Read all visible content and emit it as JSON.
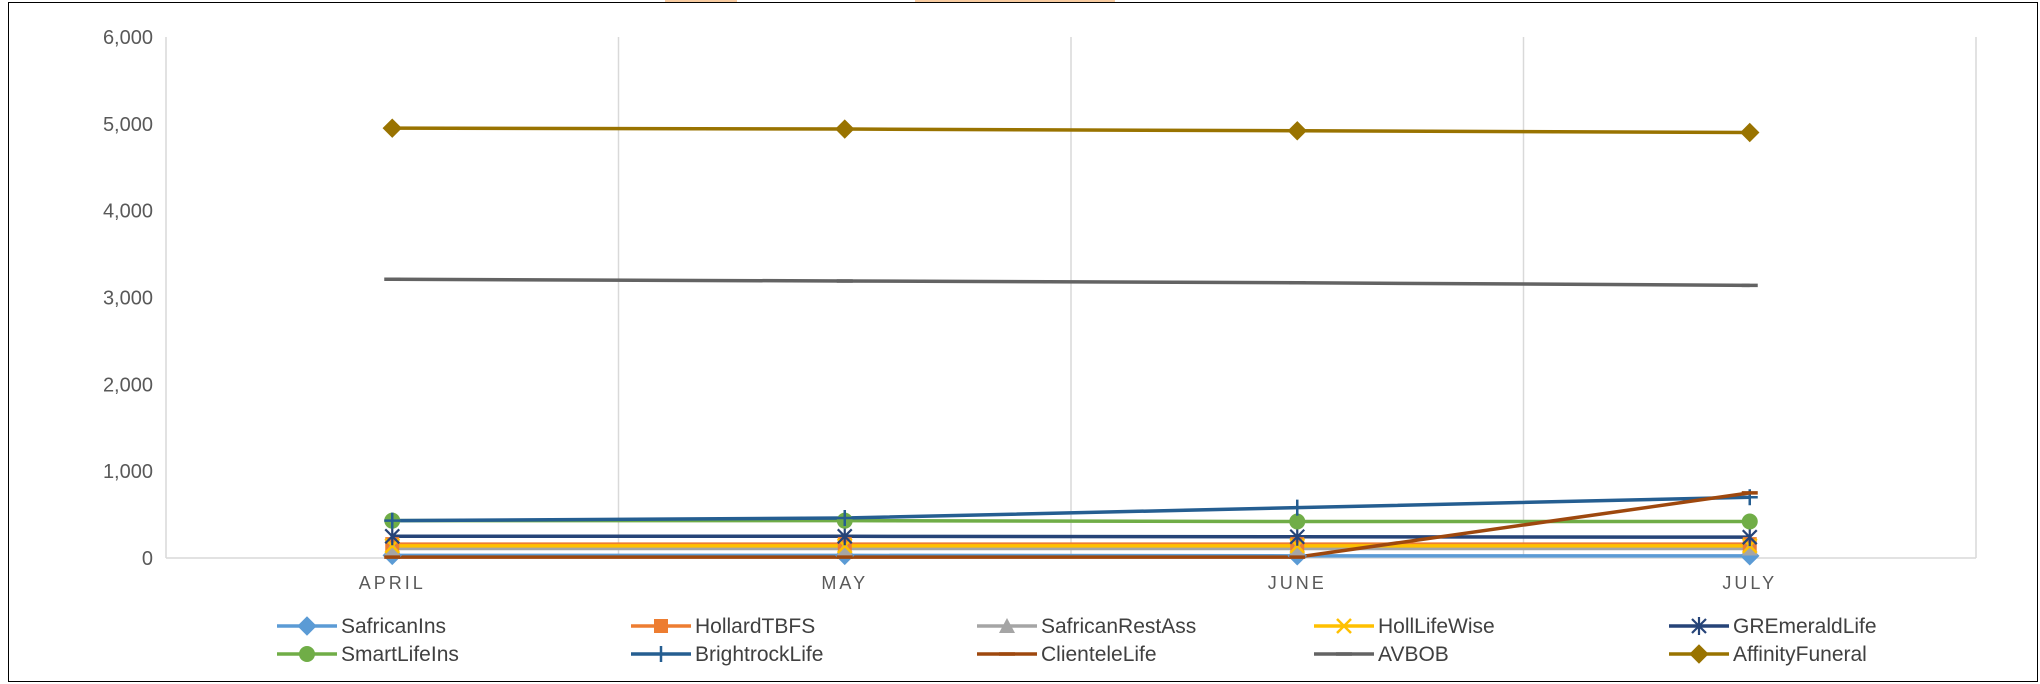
{
  "chart_data": {
    "type": "line",
    "categories": [
      "APRIL",
      "MAY",
      "JUNE",
      "JULY"
    ],
    "ylim": [
      0,
      6000
    ],
    "yticks": [
      0,
      1000,
      2000,
      3000,
      4000,
      5000,
      6000
    ],
    "ytick_labels": [
      "0",
      "1,000",
      "2,000",
      "3,000",
      "4,000",
      "5,000",
      "6,000"
    ],
    "grid": "vertical",
    "legend": "bottom",
    "series": [
      {
        "name": "SafricanIns",
        "values": [
          30,
          30,
          25,
          25
        ],
        "color": "#5b9bd5",
        "marker": "diamond"
      },
      {
        "name": "HollardTBFS",
        "values": [
          160,
          160,
          160,
          160
        ],
        "color": "#ed7d31",
        "marker": "square"
      },
      {
        "name": "SafricanRestAss",
        "values": [
          110,
          110,
          110,
          110
        ],
        "color": "#a5a5a5",
        "marker": "triangle"
      },
      {
        "name": "HollLifeWise",
        "values": [
          140,
          140,
          140,
          140
        ],
        "color": "#ffc000",
        "marker": "x"
      },
      {
        "name": "GREmeraldLife",
        "values": [
          250,
          250,
          245,
          240
        ],
        "color": "#264478",
        "marker": "star"
      },
      {
        "name": "SmartLifeIns",
        "values": [
          430,
          430,
          420,
          420
        ],
        "color": "#70ad47",
        "marker": "circle"
      },
      {
        "name": "BrightrockLife",
        "values": [
          430,
          460,
          580,
          700
        ],
        "color": "#255e91",
        "marker": "plus"
      },
      {
        "name": "ClienteleLife",
        "values": [
          10,
          10,
          10,
          750
        ],
        "color": "#9e480e",
        "marker": "dash"
      },
      {
        "name": "AVBOB",
        "values": [
          3210,
          3190,
          3170,
          3140
        ],
        "color": "#636363",
        "marker": "dash"
      },
      {
        "name": "AffinityFuneral",
        "values": [
          4950,
          4940,
          4920,
          4900
        ],
        "color": "#997300",
        "marker": "diamond"
      }
    ]
  }
}
